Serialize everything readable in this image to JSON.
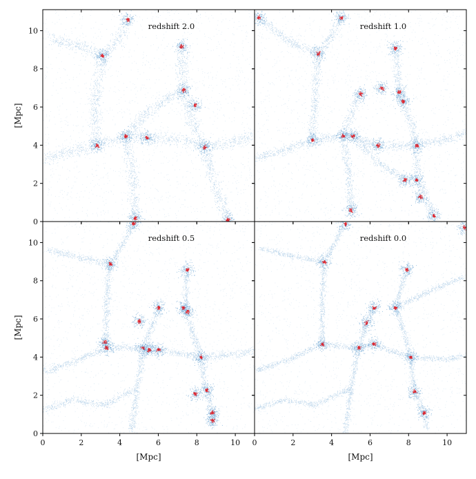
{
  "chart_data": {
    "type": "scatter",
    "layout": "2x2 shared axes",
    "xlabel": "[Mpc]",
    "ylabel": "[Mpc]",
    "xlim": [
      0,
      11
    ],
    "ylim": [
      0,
      11.1
    ],
    "xticks": [
      0,
      2,
      4,
      6,
      8,
      10
    ],
    "yticks": [
      0,
      2,
      4,
      6,
      8,
      10
    ],
    "grid": false,
    "colors": {
      "background_particles": "#4a90c8",
      "halo_particles": "#e0141c"
    },
    "panels": [
      {
        "title": "redshift 2.0",
        "halos": [
          {
            "x": 4.4,
            "y": 10.6
          },
          {
            "x": 3.1,
            "y": 8.7
          },
          {
            "x": 7.2,
            "y": 9.2
          },
          {
            "x": 7.3,
            "y": 6.9
          },
          {
            "x": 7.9,
            "y": 6.1
          },
          {
            "x": 4.3,
            "y": 4.5
          },
          {
            "x": 5.4,
            "y": 4.4
          },
          {
            "x": 2.8,
            "y": 4.0
          },
          {
            "x": 8.4,
            "y": 3.9
          },
          {
            "x": 4.8,
            "y": 0.2
          },
          {
            "x": 9.6,
            "y": 0.1
          }
        ],
        "filaments": [
          [
            [
              4.4,
              10.6
            ],
            [
              3.9,
              9.5
            ],
            [
              3.1,
              8.7
            ],
            [
              2.7,
              6.2
            ],
            [
              2.8,
              4.0
            ]
          ],
          [
            [
              2.8,
              4.0
            ],
            [
              4.3,
              4.5
            ],
            [
              5.4,
              4.4
            ],
            [
              7.2,
              4.3
            ],
            [
              8.4,
              3.9
            ]
          ],
          [
            [
              4.3,
              4.5
            ],
            [
              4.7,
              2.5
            ],
            [
              4.8,
              0.2
            ]
          ],
          [
            [
              7.3,
              6.9
            ],
            [
              7.5,
              5.8
            ],
            [
              8.4,
              3.9
            ],
            [
              8.9,
              2.0
            ],
            [
              9.6,
              0.1
            ]
          ],
          [
            [
              7.2,
              9.2
            ],
            [
              7.3,
              6.9
            ],
            [
              5.6,
              5.9
            ],
            [
              4.3,
              4.5
            ]
          ],
          [
            [
              0.0,
              3.2
            ],
            [
              1.5,
              3.7
            ],
            [
              2.8,
              4.0
            ]
          ],
          [
            [
              8.4,
              3.9
            ],
            [
              10.3,
              4.3
            ],
            [
              11,
              4.6
            ]
          ],
          [
            [
              0.3,
              9.6
            ],
            [
              1.9,
              9.2
            ],
            [
              3.1,
              8.7
            ]
          ]
        ]
      },
      {
        "title": "redshift 1.0",
        "halos": [
          {
            "x": 0.2,
            "y": 10.7
          },
          {
            "x": 4.5,
            "y": 10.7
          },
          {
            "x": 3.3,
            "y": 8.8
          },
          {
            "x": 7.3,
            "y": 9.1
          },
          {
            "x": 5.5,
            "y": 6.7
          },
          {
            "x": 6.6,
            "y": 7.0
          },
          {
            "x": 7.5,
            "y": 6.8
          },
          {
            "x": 7.7,
            "y": 6.3
          },
          {
            "x": 4.6,
            "y": 4.5
          },
          {
            "x": 5.1,
            "y": 4.5
          },
          {
            "x": 3.0,
            "y": 4.3
          },
          {
            "x": 6.4,
            "y": 4.0
          },
          {
            "x": 8.4,
            "y": 4.0
          },
          {
            "x": 8.4,
            "y": 2.2
          },
          {
            "x": 7.8,
            "y": 2.2
          },
          {
            "x": 8.6,
            "y": 1.3
          },
          {
            "x": 9.3,
            "y": 0.3
          },
          {
            "x": 5.0,
            "y": 0.6
          }
        ],
        "filaments": [
          [
            [
              4.5,
              10.7
            ],
            [
              3.9,
              9.6
            ],
            [
              3.3,
              8.8
            ],
            [
              3.1,
              6.0
            ],
            [
              3.0,
              4.3
            ]
          ],
          [
            [
              3.0,
              4.3
            ],
            [
              4.6,
              4.5
            ],
            [
              5.1,
              4.5
            ],
            [
              6.4,
              4.0
            ],
            [
              8.4,
              4.0
            ]
          ],
          [
            [
              4.6,
              4.5
            ],
            [
              4.9,
              2.4
            ],
            [
              5.0,
              0.6
            ]
          ],
          [
            [
              7.3,
              9.1
            ],
            [
              7.5,
              6.8
            ],
            [
              7.7,
              6.3
            ],
            [
              8.2,
              5.0
            ],
            [
              8.4,
              4.0
            ],
            [
              8.5,
              2.2
            ],
            [
              9.3,
              0.3
            ]
          ],
          [
            [
              5.5,
              6.7
            ],
            [
              5.0,
              5.6
            ],
            [
              4.6,
              4.5
            ]
          ],
          [
            [
              0.0,
              3.3
            ],
            [
              1.6,
              3.8
            ],
            [
              3.0,
              4.3
            ]
          ],
          [
            [
              8.4,
              4.0
            ],
            [
              10.4,
              4.4
            ],
            [
              11,
              4.7
            ]
          ],
          [
            [
              0.2,
              10.7
            ],
            [
              1.9,
              9.4
            ],
            [
              3.3,
              8.8
            ]
          ],
          [
            [
              5.1,
              4.5
            ],
            [
              6.5,
              3.0
            ],
            [
              7.8,
              2.2
            ]
          ]
        ]
      },
      {
        "title": "redshift 0.5",
        "halos": [
          {
            "x": 4.7,
            "y": 11.0
          },
          {
            "x": 3.5,
            "y": 8.9
          },
          {
            "x": 7.5,
            "y": 8.6
          },
          {
            "x": 6.0,
            "y": 6.6
          },
          {
            "x": 7.3,
            "y": 6.6
          },
          {
            "x": 7.5,
            "y": 6.4
          },
          {
            "x": 5.0,
            "y": 5.9
          },
          {
            "x": 3.2,
            "y": 4.8
          },
          {
            "x": 3.3,
            "y": 4.5
          },
          {
            "x": 5.2,
            "y": 4.5
          },
          {
            "x": 5.5,
            "y": 4.4
          },
          {
            "x": 6.0,
            "y": 4.4
          },
          {
            "x": 8.2,
            "y": 4.0
          },
          {
            "x": 8.5,
            "y": 2.3
          },
          {
            "x": 7.9,
            "y": 2.1
          },
          {
            "x": 8.8,
            "y": 1.1
          },
          {
            "x": 8.8,
            "y": 0.7
          }
        ],
        "filaments": [
          [
            [
              4.7,
              11.0
            ],
            [
              4.1,
              9.8
            ],
            [
              3.5,
              8.9
            ],
            [
              3.3,
              6.8
            ],
            [
              3.3,
              4.5
            ]
          ],
          [
            [
              3.3,
              4.5
            ],
            [
              5.2,
              4.5
            ],
            [
              6.0,
              4.4
            ],
            [
              7.2,
              4.2
            ],
            [
              8.2,
              4.0
            ]
          ],
          [
            [
              5.2,
              4.5
            ],
            [
              4.9,
              2.4
            ],
            [
              4.6,
              0.0
            ]
          ],
          [
            [
              7.5,
              8.6
            ],
            [
              7.4,
              6.6
            ],
            [
              7.8,
              5.2
            ],
            [
              8.2,
              4.0
            ],
            [
              8.5,
              2.3
            ],
            [
              8.8,
              1.1
            ],
            [
              8.8,
              0.4
            ]
          ],
          [
            [
              6.0,
              6.6
            ],
            [
              5.6,
              5.5
            ],
            [
              5.2,
              4.5
            ]
          ],
          [
            [
              0.0,
              3.2
            ],
            [
              1.7,
              3.8
            ],
            [
              3.3,
              4.5
            ]
          ],
          [
            [
              8.2,
              4.0
            ],
            [
              10.3,
              4.2
            ],
            [
              11,
              4.4
            ]
          ],
          [
            [
              0.3,
              9.6
            ],
            [
              2.0,
              9.2
            ],
            [
              3.5,
              8.9
            ]
          ],
          [
            [
              0.0,
              1.2
            ],
            [
              1.5,
              1.8
            ],
            [
              3.2,
              1.5
            ],
            [
              4.9,
              2.4
            ]
          ]
        ]
      },
      {
        "title": "redshift 0.0",
        "halos": [
          {
            "x": 4.7,
            "y": 11.0
          },
          {
            "x": 3.6,
            "y": 9.0
          },
          {
            "x": 7.9,
            "y": 8.6
          },
          {
            "x": 6.2,
            "y": 6.6
          },
          {
            "x": 7.3,
            "y": 6.6
          },
          {
            "x": 3.5,
            "y": 4.7
          },
          {
            "x": 5.4,
            "y": 4.5
          },
          {
            "x": 6.2,
            "y": 4.7
          },
          {
            "x": 8.1,
            "y": 4.0
          },
          {
            "x": 8.3,
            "y": 2.2
          },
          {
            "x": 8.8,
            "y": 1.1
          },
          {
            "x": 5.8,
            "y": 5.8
          },
          {
            "x": 10.9,
            "y": 10.8
          }
        ],
        "filaments": [
          [
            [
              4.7,
              11.0
            ],
            [
              4.1,
              9.9
            ],
            [
              3.6,
              9.0
            ],
            [
              3.5,
              6.8
            ],
            [
              3.5,
              4.7
            ]
          ],
          [
            [
              3.5,
              4.7
            ],
            [
              5.4,
              4.5
            ],
            [
              6.2,
              4.7
            ],
            [
              7.2,
              4.3
            ],
            [
              8.1,
              4.0
            ]
          ],
          [
            [
              5.4,
              4.5
            ],
            [
              5.0,
              2.4
            ],
            [
              4.7,
              0.0
            ]
          ],
          [
            [
              7.9,
              8.6
            ],
            [
              7.3,
              6.6
            ],
            [
              7.8,
              5.2
            ],
            [
              8.1,
              4.0
            ],
            [
              8.3,
              2.2
            ],
            [
              8.8,
              1.1
            ],
            [
              8.9,
              0.3
            ]
          ],
          [
            [
              6.2,
              6.6
            ],
            [
              5.8,
              5.8
            ],
            [
              5.4,
              4.5
            ]
          ],
          [
            [
              0.0,
              3.3
            ],
            [
              1.8,
              3.9
            ],
            [
              3.5,
              4.7
            ]
          ],
          [
            [
              8.1,
              4.0
            ],
            [
              10.0,
              3.9
            ],
            [
              11,
              4.1
            ]
          ],
          [
            [
              0.3,
              9.7
            ],
            [
              2.0,
              9.3
            ],
            [
              3.6,
              9.0
            ]
          ],
          [
            [
              0.0,
              1.3
            ],
            [
              1.6,
              1.8
            ],
            [
              3.1,
              1.5
            ],
            [
              5.0,
              2.4
            ]
          ],
          [
            [
              7.3,
              6.6
            ],
            [
              9.3,
              7.6
            ],
            [
              10.9,
              8.2
            ]
          ]
        ]
      }
    ]
  }
}
